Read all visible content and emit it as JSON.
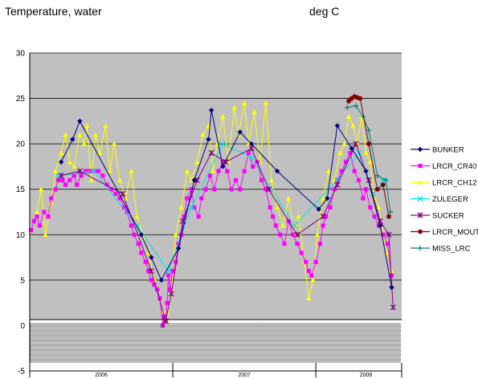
{
  "header": {
    "title": "Temperature, water",
    "units": "deg C"
  },
  "chart_data": {
    "type": "line",
    "title": "Temperature, water",
    "ylabel": "deg C",
    "xlabel": "",
    "ylim": [
      -5,
      30
    ],
    "yticks": [
      -5,
      0,
      5,
      10,
      15,
      20,
      25,
      30
    ],
    "xlim": [
      2005.75,
      2008.35
    ],
    "year_labels": [
      {
        "label": "2006",
        "x": 2006.25
      },
      {
        "label": "2007",
        "x": 2007.25
      },
      {
        "label": "2008",
        "x": 2008.1
      }
    ],
    "year_dividers": [
      2006.75,
      2007.75
    ],
    "grid": true,
    "plot_background": "#c0c0c0",
    "legend_position": "right",
    "series": [
      {
        "name": "BUNKER",
        "color": "#000080",
        "marker": "diamond",
        "points": [
          [
            2005.97,
            18.0
          ],
          [
            2006.05,
            20.5
          ],
          [
            2006.1,
            22.5
          ],
          [
            2006.53,
            10.0
          ],
          [
            2006.6,
            7.5
          ],
          [
            2006.67,
            5.0
          ],
          [
            2006.79,
            8.5
          ],
          [
            2006.9,
            16.0
          ],
          [
            2007.0,
            20.5
          ],
          [
            2007.02,
            23.7
          ],
          [
            2007.1,
            17.5
          ],
          [
            2007.22,
            21.3
          ],
          [
            2007.3,
            20.0
          ],
          [
            2007.48,
            17.0
          ],
          [
            2007.77,
            12.8
          ],
          [
            2007.83,
            14.0
          ],
          [
            2007.9,
            22.0
          ],
          [
            2008.0,
            19.5
          ],
          [
            2008.1,
            17.0
          ],
          [
            2008.2,
            11.0
          ],
          [
            2008.28,
            4.2
          ]
        ]
      },
      {
        "name": "LRCR_CR40",
        "color": "#ff00ff",
        "marker": "square",
        "points": [
          [
            2005.76,
            10.5
          ],
          [
            2005.78,
            11.5
          ],
          [
            2005.8,
            12.0
          ],
          [
            2005.82,
            11.0
          ],
          [
            2005.85,
            12.5
          ],
          [
            2005.88,
            12.0
          ],
          [
            2005.9,
            14.0
          ],
          [
            2005.93,
            15.0
          ],
          [
            2005.95,
            16.0
          ],
          [
            2005.98,
            16.0
          ],
          [
            2006.0,
            15.5
          ],
          [
            2006.03,
            16.0
          ],
          [
            2006.06,
            16.5
          ],
          [
            2006.08,
            15.5
          ],
          [
            2006.11,
            16.5
          ],
          [
            2006.14,
            17.0
          ],
          [
            2006.17,
            17.0
          ],
          [
            2006.2,
            17.0
          ],
          [
            2006.23,
            17.0
          ],
          [
            2006.26,
            16.5
          ],
          [
            2006.29,
            15.5
          ],
          [
            2006.32,
            15.0
          ],
          [
            2006.35,
            14.5
          ],
          [
            2006.38,
            14.0
          ],
          [
            2006.41,
            13.0
          ],
          [
            2006.43,
            12.5
          ],
          [
            2006.46,
            11.0
          ],
          [
            2006.48,
            10.0
          ],
          [
            2006.51,
            9.0
          ],
          [
            2006.53,
            8.0
          ],
          [
            2006.56,
            7.0
          ],
          [
            2006.58,
            6.0
          ],
          [
            2006.6,
            5.0
          ],
          [
            2006.62,
            4.5
          ],
          [
            2006.64,
            4.0
          ],
          [
            2006.66,
            3.0
          ],
          [
            2006.68,
            0.0
          ],
          [
            2006.69,
            1.0
          ],
          [
            2006.7,
            0.5
          ],
          [
            2006.71,
            2.5
          ],
          [
            2006.72,
            5.5
          ],
          [
            2006.73,
            4.0
          ],
          [
            2006.75,
            6.0
          ],
          [
            2006.77,
            7.0
          ],
          [
            2006.79,
            9.0
          ],
          [
            2006.81,
            10.0
          ],
          [
            2006.83,
            12.0
          ],
          [
            2006.85,
            14.0
          ],
          [
            2006.88,
            15.0
          ],
          [
            2006.9,
            13.0
          ],
          [
            2006.93,
            12.0
          ],
          [
            2006.95,
            14.0
          ],
          [
            2006.98,
            15.0
          ],
          [
            2007.01,
            16.5
          ],
          [
            2007.04,
            15.0
          ],
          [
            2007.07,
            17.0
          ],
          [
            2007.1,
            18.0
          ],
          [
            2007.13,
            17.0
          ],
          [
            2007.16,
            15.0
          ],
          [
            2007.19,
            16.0
          ],
          [
            2007.22,
            15.0
          ],
          [
            2007.25,
            17.0
          ],
          [
            2007.28,
            19.0
          ],
          [
            2007.31,
            17.5
          ],
          [
            2007.34,
            18.0
          ],
          [
            2007.37,
            16.0
          ],
          [
            2007.4,
            15.0
          ],
          [
            2007.43,
            13.0
          ],
          [
            2007.45,
            12.0
          ],
          [
            2007.47,
            11.0
          ],
          [
            2007.5,
            10.0
          ],
          [
            2007.53,
            9.0
          ],
          [
            2007.56,
            11.5
          ],
          [
            2007.59,
            10.0
          ],
          [
            2007.62,
            9.0
          ],
          [
            2007.65,
            8.0
          ],
          [
            2007.68,
            7.0
          ],
          [
            2007.7,
            6.0
          ],
          [
            2007.72,
            5.5
          ],
          [
            2007.75,
            7.0
          ],
          [
            2007.78,
            9.0
          ],
          [
            2007.8,
            11.0
          ],
          [
            2007.82,
            12.0
          ],
          [
            2007.85,
            13.0
          ],
          [
            2007.88,
            15.0
          ],
          [
            2007.9,
            16.0
          ],
          [
            2007.93,
            17.0
          ],
          [
            2007.96,
            18.0
          ],
          [
            2007.99,
            19.0
          ],
          [
            2008.02,
            17.0
          ],
          [
            2008.05,
            16.0
          ],
          [
            2008.08,
            14.0
          ],
          [
            2008.1,
            15.0
          ],
          [
            2008.13,
            13.0
          ],
          [
            2008.16,
            12.0
          ],
          [
            2008.19,
            11.0
          ],
          [
            2008.22,
            10.0
          ],
          [
            2008.25,
            9.0
          ],
          [
            2008.28,
            5.5
          ]
        ]
      },
      {
        "name": "LRCR_CH12",
        "color": "#ffff00",
        "marker": "triangle",
        "points": [
          [
            2005.76,
            10.5
          ],
          [
            2005.8,
            12.5
          ],
          [
            2005.83,
            15.0
          ],
          [
            2005.86,
            10.0
          ],
          [
            2005.9,
            13.5
          ],
          [
            2005.93,
            17.0
          ],
          [
            2005.97,
            19.0
          ],
          [
            2006.0,
            21.0
          ],
          [
            2006.03,
            18.0
          ],
          [
            2006.06,
            17.5
          ],
          [
            2006.1,
            21.0
          ],
          [
            2006.13,
            20.0
          ],
          [
            2006.15,
            22.0
          ],
          [
            2006.18,
            16.0
          ],
          [
            2006.21,
            21.0
          ],
          [
            2006.24,
            19.0
          ],
          [
            2006.28,
            22.0
          ],
          [
            2006.31,
            17.0
          ],
          [
            2006.34,
            20.0
          ],
          [
            2006.38,
            16.0
          ],
          [
            2006.42,
            14.0
          ],
          [
            2006.46,
            17.0
          ],
          [
            2006.5,
            12.0
          ],
          [
            2006.54,
            10.0
          ],
          [
            2006.58,
            8.0
          ],
          [
            2006.62,
            5.0
          ],
          [
            2006.66,
            3.0
          ],
          [
            2006.68,
            1.5
          ],
          [
            2006.71,
            0.5
          ],
          [
            2006.74,
            4.0
          ],
          [
            2006.77,
            10.0
          ],
          [
            2006.81,
            13.0
          ],
          [
            2006.85,
            17.0
          ],
          [
            2006.88,
            16.0
          ],
          [
            2006.92,
            18.0
          ],
          [
            2006.96,
            21.0
          ],
          [
            2007.0,
            22.0
          ],
          [
            2007.03,
            17.0
          ],
          [
            2007.06,
            20.0
          ],
          [
            2007.1,
            23.0
          ],
          [
            2007.14,
            18.0
          ],
          [
            2007.18,
            24.0
          ],
          [
            2007.21,
            21.0
          ],
          [
            2007.25,
            24.5
          ],
          [
            2007.28,
            20.0
          ],
          [
            2007.32,
            23.5
          ],
          [
            2007.36,
            18.0
          ],
          [
            2007.4,
            24.5
          ],
          [
            2007.44,
            16.0
          ],
          [
            2007.48,
            13.0
          ],
          [
            2007.52,
            11.0
          ],
          [
            2007.56,
            14.0
          ],
          [
            2007.6,
            10.0
          ],
          [
            2007.63,
            12.0
          ],
          [
            2007.67,
            7.0
          ],
          [
            2007.7,
            3.0
          ],
          [
            2007.73,
            5.0
          ],
          [
            2007.76,
            10.0
          ],
          [
            2007.8,
            14.0
          ],
          [
            2007.84,
            17.0
          ],
          [
            2007.88,
            16.0
          ],
          [
            2007.92,
            19.0
          ],
          [
            2007.95,
            20.0
          ],
          [
            2007.98,
            23.0
          ],
          [
            2008.01,
            22.0
          ],
          [
            2008.04,
            20.0
          ],
          [
            2008.07,
            23.0
          ],
          [
            2008.1,
            19.0
          ],
          [
            2008.13,
            18.0
          ],
          [
            2008.16,
            14.0
          ],
          [
            2008.19,
            13.0
          ],
          [
            2008.22,
            10.0
          ],
          [
            2008.25,
            8.0
          ],
          [
            2008.28,
            6.0
          ]
        ]
      },
      {
        "name": "ZULEGER",
        "color": "#00e5e5",
        "marker": "x",
        "points": [
          [
            2005.95,
            16.5
          ],
          [
            2006.2,
            17.0
          ],
          [
            2006.5,
            11.0
          ],
          [
            2006.72,
            6.0
          ],
          [
            2006.88,
            13.0
          ],
          [
            2007.1,
            20.0
          ],
          [
            2007.3,
            18.5
          ],
          [
            2007.6,
            11.0
          ],
          [
            2007.9,
            16.0
          ],
          [
            2008.05,
            19.0
          ],
          [
            2008.15,
            14.5
          ],
          [
            2008.22,
            16.0
          ]
        ]
      },
      {
        "name": "SUCKER",
        "color": "#800080",
        "marker": "star",
        "points": [
          [
            2005.97,
            16.5
          ],
          [
            2006.1,
            17.0
          ],
          [
            2006.4,
            14.5
          ],
          [
            2006.6,
            6.0
          ],
          [
            2006.7,
            0.5
          ],
          [
            2006.74,
            3.5
          ],
          [
            2006.82,
            11.5
          ],
          [
            2006.92,
            16.0
          ],
          [
            2007.02,
            19.0
          ],
          [
            2007.12,
            18.0
          ],
          [
            2007.3,
            19.5
          ],
          [
            2007.42,
            15.0
          ],
          [
            2007.62,
            10.0
          ],
          [
            2007.8,
            12.0
          ],
          [
            2007.9,
            15.5
          ],
          [
            2008.03,
            20.0
          ],
          [
            2008.12,
            16.0
          ],
          [
            2008.2,
            11.5
          ],
          [
            2008.26,
            10.0
          ],
          [
            2008.29,
            2.0
          ]
        ]
      },
      {
        "name": "LRCR_MOUTH",
        "color": "#800000",
        "marker": "circle",
        "points": [
          [
            2007.98,
            24.7
          ],
          [
            2008.0,
            25.0
          ],
          [
            2008.02,
            25.2
          ],
          [
            2008.04,
            25.1
          ],
          [
            2008.06,
            25.0
          ],
          [
            2008.12,
            20.0
          ],
          [
            2008.18,
            15.0
          ],
          [
            2008.22,
            15.5
          ],
          [
            2008.26,
            12.0
          ]
        ]
      },
      {
        "name": "MISS_LRC",
        "color": "#008080",
        "marker": "plus",
        "points": [
          [
            2007.97,
            24.0
          ],
          [
            2008.03,
            24.2
          ],
          [
            2008.08,
            23.0
          ],
          [
            2008.12,
            21.5
          ],
          [
            2008.18,
            16.5
          ],
          [
            2008.24,
            16.0
          ],
          [
            2008.27,
            12.5
          ]
        ]
      }
    ]
  }
}
